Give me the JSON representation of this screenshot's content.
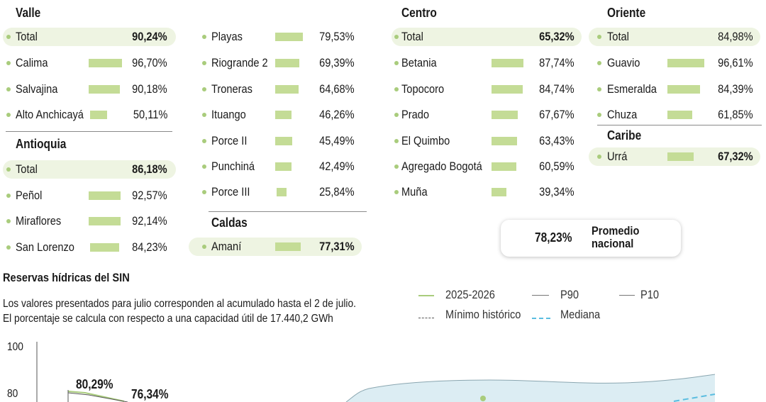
{
  "regions": [
    {
      "key": "valle",
      "title": "Valle",
      "total": "90,24%",
      "items": [
        {
          "name": "Calima",
          "value": "96,70%",
          "pct": 96.7
        },
        {
          "name": "Salvajina",
          "value": "90,18%",
          "pct": 90.18
        },
        {
          "name": "Alto Anchicayá",
          "value": "50,11%",
          "pct": 50.11
        }
      ]
    },
    {
      "key": "antioquia",
      "title": "Antioquia",
      "total": "86,18%",
      "items": [
        {
          "name": "Peñol",
          "value": "92,57%",
          "pct": 92.57
        },
        {
          "name": "Miraflores",
          "value": "92,14%",
          "pct": 92.14
        },
        {
          "name": "San Lorenzo",
          "value": "84,23%",
          "pct": 84.23
        },
        {
          "name": "Playas",
          "value": "79,53%",
          "pct": 79.53
        },
        {
          "name": "Riogrande 2",
          "value": "69,39%",
          "pct": 69.39
        },
        {
          "name": "Troneras",
          "value": "64,68%",
          "pct": 64.68
        },
        {
          "name": "Ituango",
          "value": "46,26%",
          "pct": 46.26
        },
        {
          "name": "Porce II",
          "value": "45,49%",
          "pct": 45.49
        },
        {
          "name": "Punchiná",
          "value": "42,49%",
          "pct": 42.49
        },
        {
          "name": "Porce III",
          "value": "25,84%",
          "pct": 25.84
        }
      ]
    },
    {
      "key": "caldas",
      "title": "Caldas",
      "items": [
        {
          "name": "Amaní",
          "value": "77,31%",
          "pct": 77.31
        }
      ]
    },
    {
      "key": "centro",
      "title": "Centro",
      "total": "65,32%",
      "items": [
        {
          "name": "Betania",
          "value": "87,74%",
          "pct": 87.74
        },
        {
          "name": "Topocoro",
          "value": "84,74%",
          "pct": 84.74
        },
        {
          "name": "Prado",
          "value": "67,67%",
          "pct": 67.67
        },
        {
          "name": "El Quimbo",
          "value": "63,43%",
          "pct": 63.43
        },
        {
          "name": "Agregado Bogotá",
          "value": "60,59%",
          "pct": 60.59
        },
        {
          "name": "Muña",
          "value": "39,34%",
          "pct": 39.34
        }
      ]
    },
    {
      "key": "oriente",
      "title": "Oriente",
      "total": "84,98%",
      "items": [
        {
          "name": "Guavio",
          "value": "96,61%",
          "pct": 96.61
        },
        {
          "name": "Esmeralda",
          "value": "84,39%",
          "pct": 84.39
        },
        {
          "name": "Chuza",
          "value": "61,85%",
          "pct": 61.85
        }
      ]
    },
    {
      "key": "caribe",
      "title": "Caribe",
      "items": [
        {
          "name": "Urrá",
          "value": "67,32%",
          "pct": 67.32
        }
      ]
    }
  ],
  "total_label": "Total",
  "average": {
    "value": "78,23%",
    "label_line1": "Promedio",
    "label_line2": "nacional"
  },
  "reserves": {
    "title": "Reservas hídricas del SIN",
    "note_line1": "Los valores presentados para julio corresponden al acumulado hasta el 2 de julio.",
    "note_line2": "El porcentaje se calcula con respecto a una capacidad útil de 17.440,2 GWh"
  },
  "legend": {
    "s2025": "2025-2026",
    "p90": "P90",
    "p10": "P10",
    "min": "Mínimo histórico",
    "median": "Mediana"
  },
  "colors": {
    "bar": "#c4dc96",
    "pill": "#eef4e2",
    "dot": "#a9cc7c",
    "series": "#a9cc7c",
    "band": "#dcedf3",
    "median": "#5bbde0"
  },
  "chart_data": {
    "type": "line",
    "title": "Reservas hídricas del SIN",
    "ylim": [
      0,
      100
    ],
    "yticks": [
      100,
      80
    ],
    "series": [
      {
        "name": "2025-2026",
        "annotations": [
          "80,29%",
          "76,34%"
        ]
      },
      {
        "name": "P90"
      },
      {
        "name": "P10"
      },
      {
        "name": "Mínimo histórico"
      },
      {
        "name": "Mediana"
      }
    ],
    "annotations": [
      "80,29%",
      "76,34%"
    ]
  }
}
